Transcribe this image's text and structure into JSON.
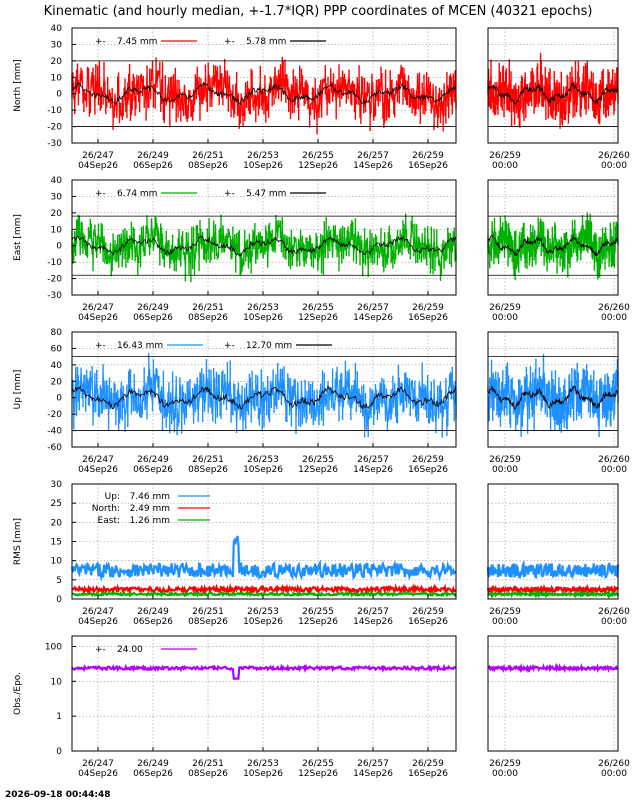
{
  "title": "Kinematic (and hourly median, +-1.7*IQR) PPP coordinates of MCEN (40321 epochs)",
  "timestamp": "2026-09-18 00:44:48",
  "x_axis": {
    "main_ticks": [
      {
        "day": "26/247",
        "date": "04Sep26"
      },
      {
        "day": "26/249",
        "date": "06Sep26"
      },
      {
        "day": "26/251",
        "date": "08Sep26"
      },
      {
        "day": "26/253",
        "date": "10Sep26"
      },
      {
        "day": "26/255",
        "date": "12Sep26"
      },
      {
        "day": "26/257",
        "date": "14Sep26"
      },
      {
        "day": "26/259",
        "date": "16Sep26"
      }
    ],
    "zoom_ticks": [
      {
        "day": "26/259",
        "time": "00:00"
      },
      {
        "day": "26/260",
        "time": "00:00"
      }
    ]
  },
  "chart_data": [
    {
      "type": "line",
      "ylabel": "North [mm]",
      "ylim": [
        -30,
        40
      ],
      "yticks": [
        -30,
        -20,
        -10,
        0,
        10,
        20,
        30,
        40
      ],
      "ref_lines": [
        -20,
        20
      ],
      "legend": [
        {
          "label": "7.45 mm",
          "color": "#ff0000"
        },
        {
          "label": "5.78 mm",
          "color": "#000000"
        }
      ],
      "series": [
        {
          "name": "7.45 mm",
          "color": "#ff0000",
          "spread": 7.45
        },
        {
          "name": "5.78 mm",
          "color": "#000000",
          "spread": 5.78
        }
      ]
    },
    {
      "type": "line",
      "ylabel": "East [mm]",
      "ylim": [
        -30,
        40
      ],
      "yticks": [
        -30,
        -20,
        -10,
        0,
        10,
        20,
        30,
        40
      ],
      "ref_lines": [
        -18,
        18
      ],
      "legend": [
        {
          "label": "6.74 mm",
          "color": "#00b000"
        },
        {
          "label": "5.47 mm",
          "color": "#000000"
        }
      ],
      "series": [
        {
          "name": "6.74 mm",
          "color": "#00b000",
          "spread": 6.74
        },
        {
          "name": "5.47 mm",
          "color": "#000000",
          "spread": 5.47
        }
      ]
    },
    {
      "type": "line",
      "ylabel": "Up [mm]",
      "ylim": [
        -60,
        80
      ],
      "yticks": [
        -60,
        -40,
        -20,
        0,
        20,
        40,
        60,
        80
      ],
      "ref_lines": [
        -40,
        50
      ],
      "legend": [
        {
          "label": "16.43 mm",
          "color": "#1e90ff"
        },
        {
          "label": "12.70 mm",
          "color": "#000000"
        }
      ],
      "series": [
        {
          "name": "16.43 mm",
          "color": "#1e90ff",
          "spread": 16.43
        },
        {
          "name": "12.70 mm",
          "color": "#000000",
          "spread": 12.7
        }
      ]
    },
    {
      "type": "line",
      "ylabel": "RMS [mm]",
      "ylim": [
        0,
        30
      ],
      "yticks": [
        0,
        5,
        10,
        15,
        20,
        25,
        30
      ],
      "ref_lines": [],
      "legend": [
        {
          "name": "Up:",
          "label": "7.46 mm",
          "color": "#1e90ff"
        },
        {
          "name": "North:",
          "label": "2.49 mm",
          "color": "#ff0000"
        },
        {
          "name": "East:",
          "label": "1.26 mm",
          "color": "#00b000"
        }
      ],
      "series": [
        {
          "name": "Up",
          "color": "#1e90ff",
          "level": 7.46
        },
        {
          "name": "North",
          "color": "#ff0000",
          "level": 2.49
        },
        {
          "name": "East",
          "color": "#00b000",
          "level": 1.26
        }
      ]
    },
    {
      "type": "line",
      "ylabel": "Obs./Epo.",
      "log_scale": true,
      "ylim": [
        0.1,
        200
      ],
      "yticks": [
        0,
        1,
        10,
        100
      ],
      "ref_lines": [],
      "legend": [
        {
          "label": "24.00",
          "color": "#b000ff"
        }
      ],
      "series": [
        {
          "name": "24.00",
          "color": "#b000ff",
          "level": 24.0
        }
      ]
    }
  ]
}
